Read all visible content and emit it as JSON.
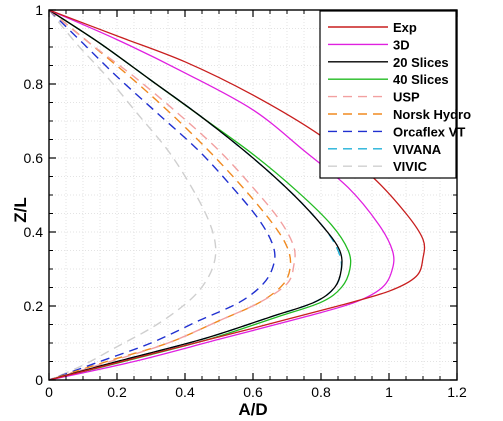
{
  "chart_data": {
    "type": "line",
    "xlabel": "A/D",
    "ylabel": "Z/L",
    "xlim": [
      0,
      1.2
    ],
    "ylim": [
      0,
      1
    ],
    "x_ticks": [
      "0",
      "0.2",
      "0.4",
      "0.6",
      "0.8",
      "1",
      "1.2"
    ],
    "y_ticks": [
      "0",
      "0.2",
      "0.4",
      "0.6",
      "0.8",
      "1"
    ],
    "grid": true,
    "legend_position": "top-right",
    "series": [
      {
        "name": "Exp",
        "color": "#c81e1e",
        "dash": "solid",
        "x": [
          0,
          0.2,
          0.4,
          0.6,
          0.8,
          0.95,
          1.05,
          1.1,
          1.1,
          1.08,
          1.0,
          0.85,
          0.6,
          0.3,
          0
        ],
        "y": [
          1,
          0.93,
          0.86,
          0.77,
          0.66,
          0.55,
          0.45,
          0.38,
          0.33,
          0.28,
          0.24,
          0.2,
          0.14,
          0.07,
          0
        ]
      },
      {
        "name": "3D",
        "color": "#e020e0",
        "dash": "solid",
        "x": [
          0,
          0.2,
          0.4,
          0.6,
          0.75,
          0.88,
          0.97,
          1.01,
          1.01,
          0.98,
          0.9,
          0.75,
          0.5,
          0.25,
          0
        ],
        "y": [
          1,
          0.92,
          0.83,
          0.73,
          0.62,
          0.52,
          0.42,
          0.35,
          0.3,
          0.25,
          0.21,
          0.17,
          0.11,
          0.05,
          0
        ]
      },
      {
        "name": "20 Slices",
        "color": "#000000",
        "dash": "solid",
        "x": [
          0,
          0.15,
          0.3,
          0.45,
          0.6,
          0.72,
          0.81,
          0.855,
          0.86,
          0.84,
          0.78,
          0.65,
          0.45,
          0.2,
          0
        ],
        "y": [
          1,
          0.91,
          0.81,
          0.71,
          0.6,
          0.5,
          0.41,
          0.35,
          0.3,
          0.25,
          0.21,
          0.17,
          0.11,
          0.05,
          0
        ]
      },
      {
        "name": "40 Slices",
        "color": "#22bb22",
        "dash": "solid",
        "x": [
          0,
          0.15,
          0.3,
          0.45,
          0.6,
          0.73,
          0.83,
          0.88,
          0.885,
          0.86,
          0.8,
          0.67,
          0.47,
          0.22,
          0
        ],
        "y": [
          1,
          0.91,
          0.81,
          0.71,
          0.61,
          0.51,
          0.42,
          0.35,
          0.3,
          0.25,
          0.21,
          0.17,
          0.11,
          0.05,
          0
        ]
      },
      {
        "name": "USP",
        "color": "#f2a0a0",
        "dash": "dash",
        "x": [
          0,
          0.12,
          0.25,
          0.38,
          0.5,
          0.6,
          0.68,
          0.72,
          0.72,
          0.7,
          0.62,
          0.5,
          0.35,
          0.18,
          0
        ],
        "y": [
          1,
          0.91,
          0.82,
          0.72,
          0.62,
          0.52,
          0.43,
          0.36,
          0.31,
          0.26,
          0.21,
          0.16,
          0.1,
          0.05,
          0
        ]
      },
      {
        "name": "Norsk Hydro",
        "color": "#f08a20",
        "dash": "dash",
        "x": [
          0,
          0.12,
          0.25,
          0.37,
          0.48,
          0.58,
          0.66,
          0.7,
          0.71,
          0.69,
          0.62,
          0.5,
          0.35,
          0.17,
          0
        ],
        "y": [
          1,
          0.91,
          0.81,
          0.71,
          0.61,
          0.51,
          0.42,
          0.36,
          0.31,
          0.26,
          0.21,
          0.16,
          0.1,
          0.05,
          0
        ]
      },
      {
        "name": "Orcaflex VT",
        "color": "#2030d0",
        "dash": "dash",
        "x": [
          0,
          0.1,
          0.2,
          0.32,
          0.44,
          0.54,
          0.62,
          0.66,
          0.66,
          0.63,
          0.56,
          0.44,
          0.3,
          0.15,
          0
        ],
        "y": [
          1,
          0.91,
          0.82,
          0.72,
          0.62,
          0.52,
          0.43,
          0.36,
          0.31,
          0.26,
          0.21,
          0.16,
          0.1,
          0.05,
          0
        ]
      },
      {
        "name": "VIVANA",
        "color": "#20b0d8",
        "dash": "dash",
        "x": [
          0,
          0.15,
          0.3,
          0.45,
          0.6,
          0.72,
          0.81,
          0.85,
          0.86,
          0.84,
          0.78,
          0.65,
          0.45,
          0.2,
          0
        ],
        "y": [
          1,
          0.91,
          0.81,
          0.71,
          0.6,
          0.5,
          0.41,
          0.35,
          0.3,
          0.25,
          0.21,
          0.17,
          0.11,
          0.05,
          0
        ]
      },
      {
        "name": "VIVIC",
        "color": "#cfcfcf",
        "dash": "dash",
        "x": [
          0,
          0.08,
          0.17,
          0.26,
          0.35,
          0.42,
          0.47,
          0.49,
          0.48,
          0.44,
          0.38,
          0.3,
          0.2,
          0.1,
          0
        ],
        "y": [
          1,
          0.91,
          0.82,
          0.72,
          0.62,
          0.52,
          0.43,
          0.36,
          0.3,
          0.24,
          0.19,
          0.14,
          0.09,
          0.04,
          0
        ]
      }
    ]
  }
}
